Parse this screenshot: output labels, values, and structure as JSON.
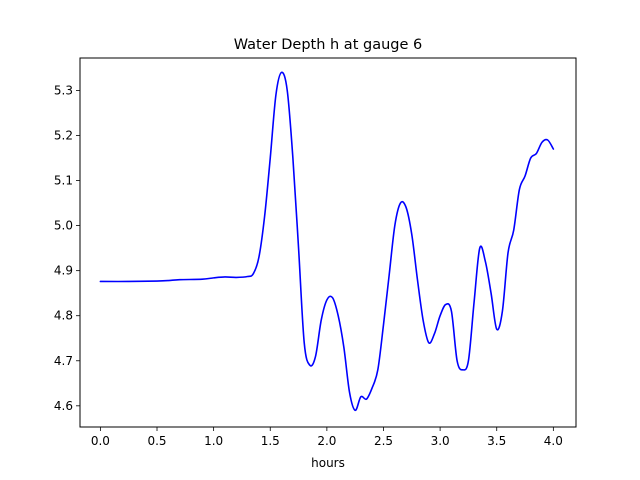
{
  "chart_data": {
    "type": "line",
    "title": "Water Depth h at gauge 6",
    "xlabel": "hours",
    "ylabel": "",
    "xlim": [
      -0.18,
      4.2
    ],
    "ylim": [
      4.553,
      5.372
    ],
    "xticks": [
      0.0,
      0.5,
      1.0,
      1.5,
      2.0,
      2.5,
      3.0,
      3.5,
      4.0
    ],
    "xtick_labels": [
      "0.0",
      "0.5",
      "1.0",
      "1.5",
      "2.0",
      "2.5",
      "3.0",
      "3.5",
      "4.0"
    ],
    "yticks": [
      4.6,
      4.7,
      4.8,
      4.9,
      5.0,
      5.1,
      5.2,
      5.3
    ],
    "ytick_labels": [
      "4.6",
      "4.7",
      "4.8",
      "4.9",
      "5.0",
      "5.1",
      "5.2",
      "5.3"
    ],
    "grid": false,
    "legend": "none",
    "series": [
      {
        "color": "#0000ff",
        "x": [
          0.0,
          0.25,
          0.5,
          0.6,
          0.7,
          0.9,
          1.0,
          1.1,
          1.2,
          1.3,
          1.35,
          1.4,
          1.45,
          1.5,
          1.55,
          1.6,
          1.65,
          1.7,
          1.75,
          1.8,
          1.85,
          1.9,
          1.95,
          2.0,
          2.05,
          2.1,
          2.15,
          2.2,
          2.25,
          2.3,
          2.35,
          2.4,
          2.45,
          2.5,
          2.55,
          2.6,
          2.65,
          2.7,
          2.75,
          2.8,
          2.85,
          2.9,
          2.95,
          3.0,
          3.05,
          3.1,
          3.15,
          3.2,
          3.25,
          3.3,
          3.35,
          3.4,
          3.45,
          3.5,
          3.55,
          3.6,
          3.65,
          3.7,
          3.75,
          3.8,
          3.85,
          3.9,
          3.95,
          4.0
        ],
        "y": [
          4.876,
          4.876,
          4.877,
          4.878,
          4.88,
          4.881,
          4.884,
          4.886,
          4.885,
          4.887,
          4.893,
          4.93,
          5.02,
          5.15,
          5.29,
          5.34,
          5.3,
          5.15,
          4.95,
          4.74,
          4.69,
          4.71,
          4.79,
          4.835,
          4.84,
          4.8,
          4.73,
          4.63,
          4.59,
          4.62,
          4.615,
          4.64,
          4.68,
          4.78,
          4.89,
          5.0,
          5.05,
          5.04,
          4.98,
          4.88,
          4.79,
          4.74,
          4.76,
          4.8,
          4.825,
          4.81,
          4.7,
          4.68,
          4.7,
          4.83,
          4.95,
          4.92,
          4.85,
          4.77,
          4.81,
          4.94,
          4.99,
          5.08,
          5.11,
          5.15,
          5.16,
          5.185,
          5.19,
          5.17
        ]
      }
    ]
  }
}
